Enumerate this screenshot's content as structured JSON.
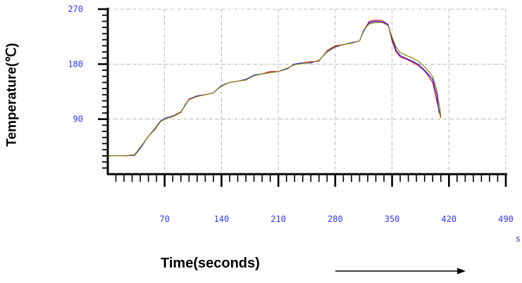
{
  "chart_data": {
    "type": "line",
    "title": "",
    "xlabel": "Time(seconds)",
    "ylabel": "Temperature(℃)",
    "x_unit": "s",
    "xlim": [
      0,
      490
    ],
    "ylim": [
      0,
      270
    ],
    "x_ticks": [
      70,
      140,
      210,
      280,
      350,
      420,
      490
    ],
    "y_ticks": [
      90,
      180,
      270
    ],
    "grid": true,
    "legend": "none",
    "series": [
      {
        "color": "#e8001c",
        "x": [
          0,
          20,
          33,
          40,
          50,
          58,
          65,
          72,
          80,
          90,
          95,
          100,
          110,
          120,
          130,
          140,
          150,
          160,
          170,
          180,
          190,
          200,
          210,
          220,
          230,
          240,
          250,
          260,
          270,
          280,
          290,
          300,
          310,
          315,
          322,
          330,
          338,
          345,
          350,
          355,
          360,
          368,
          375,
          382,
          390,
          395,
          400,
          405,
          410
        ],
        "y": [
          30,
          30,
          31,
          43,
          62,
          73,
          86,
          92,
          95,
          102,
          112,
          123,
          128,
          130,
          133,
          145,
          150,
          152,
          155,
          162,
          164,
          168,
          168,
          172,
          180,
          182,
          184,
          185,
          202,
          210,
          212,
          215,
          218,
          235,
          250,
          252,
          251,
          245,
          218,
          200,
          192,
          188,
          183,
          178,
          169,
          160,
          150,
          120,
          92
        ]
      },
      {
        "color": "#1a1aff",
        "x": [
          0,
          20,
          33,
          40,
          50,
          58,
          65,
          72,
          80,
          90,
          95,
          100,
          110,
          120,
          130,
          140,
          150,
          160,
          170,
          180,
          190,
          200,
          210,
          220,
          230,
          240,
          250,
          260,
          270,
          280,
          290,
          300,
          310,
          315,
          322,
          330,
          338,
          345,
          350,
          355,
          360,
          368,
          375,
          382,
          390,
          395,
          400,
          405,
          408
        ],
        "y": [
          30,
          30,
          31,
          42,
          62,
          75,
          87,
          92,
          95,
          101,
          112,
          122,
          128,
          130,
          133,
          145,
          150,
          152,
          155,
          162,
          164,
          166,
          168,
          172,
          180,
          182,
          182,
          186,
          200,
          208,
          212,
          215,
          218,
          234,
          248,
          250,
          249,
          245,
          222,
          203,
          194,
          189,
          185,
          180,
          170,
          163,
          155,
          130,
          100
        ]
      },
      {
        "color": "#8a8a00",
        "x": [
          0,
          20,
          33,
          40,
          50,
          58,
          65,
          72,
          80,
          90,
          95,
          100,
          110,
          120,
          130,
          140,
          150,
          160,
          170,
          180,
          190,
          200,
          210,
          220,
          230,
          240,
          250,
          260,
          270,
          280,
          290,
          300,
          310,
          315,
          322,
          330,
          338,
          345,
          350,
          355,
          360,
          368,
          375,
          382,
          390,
          395,
          400,
          405,
          410
        ],
        "y": [
          30,
          30,
          32,
          44,
          62,
          74,
          86,
          91,
          94,
          101,
          113,
          122,
          127,
          130,
          133,
          144,
          150,
          152,
          154,
          161,
          164,
          166,
          168,
          173,
          179,
          181,
          183,
          186,
          201,
          209,
          212,
          214,
          218,
          236,
          246,
          248,
          248,
          243,
          224,
          208,
          199,
          194,
          190,
          185,
          176,
          168,
          160,
          138,
          96
        ]
      }
    ]
  }
}
